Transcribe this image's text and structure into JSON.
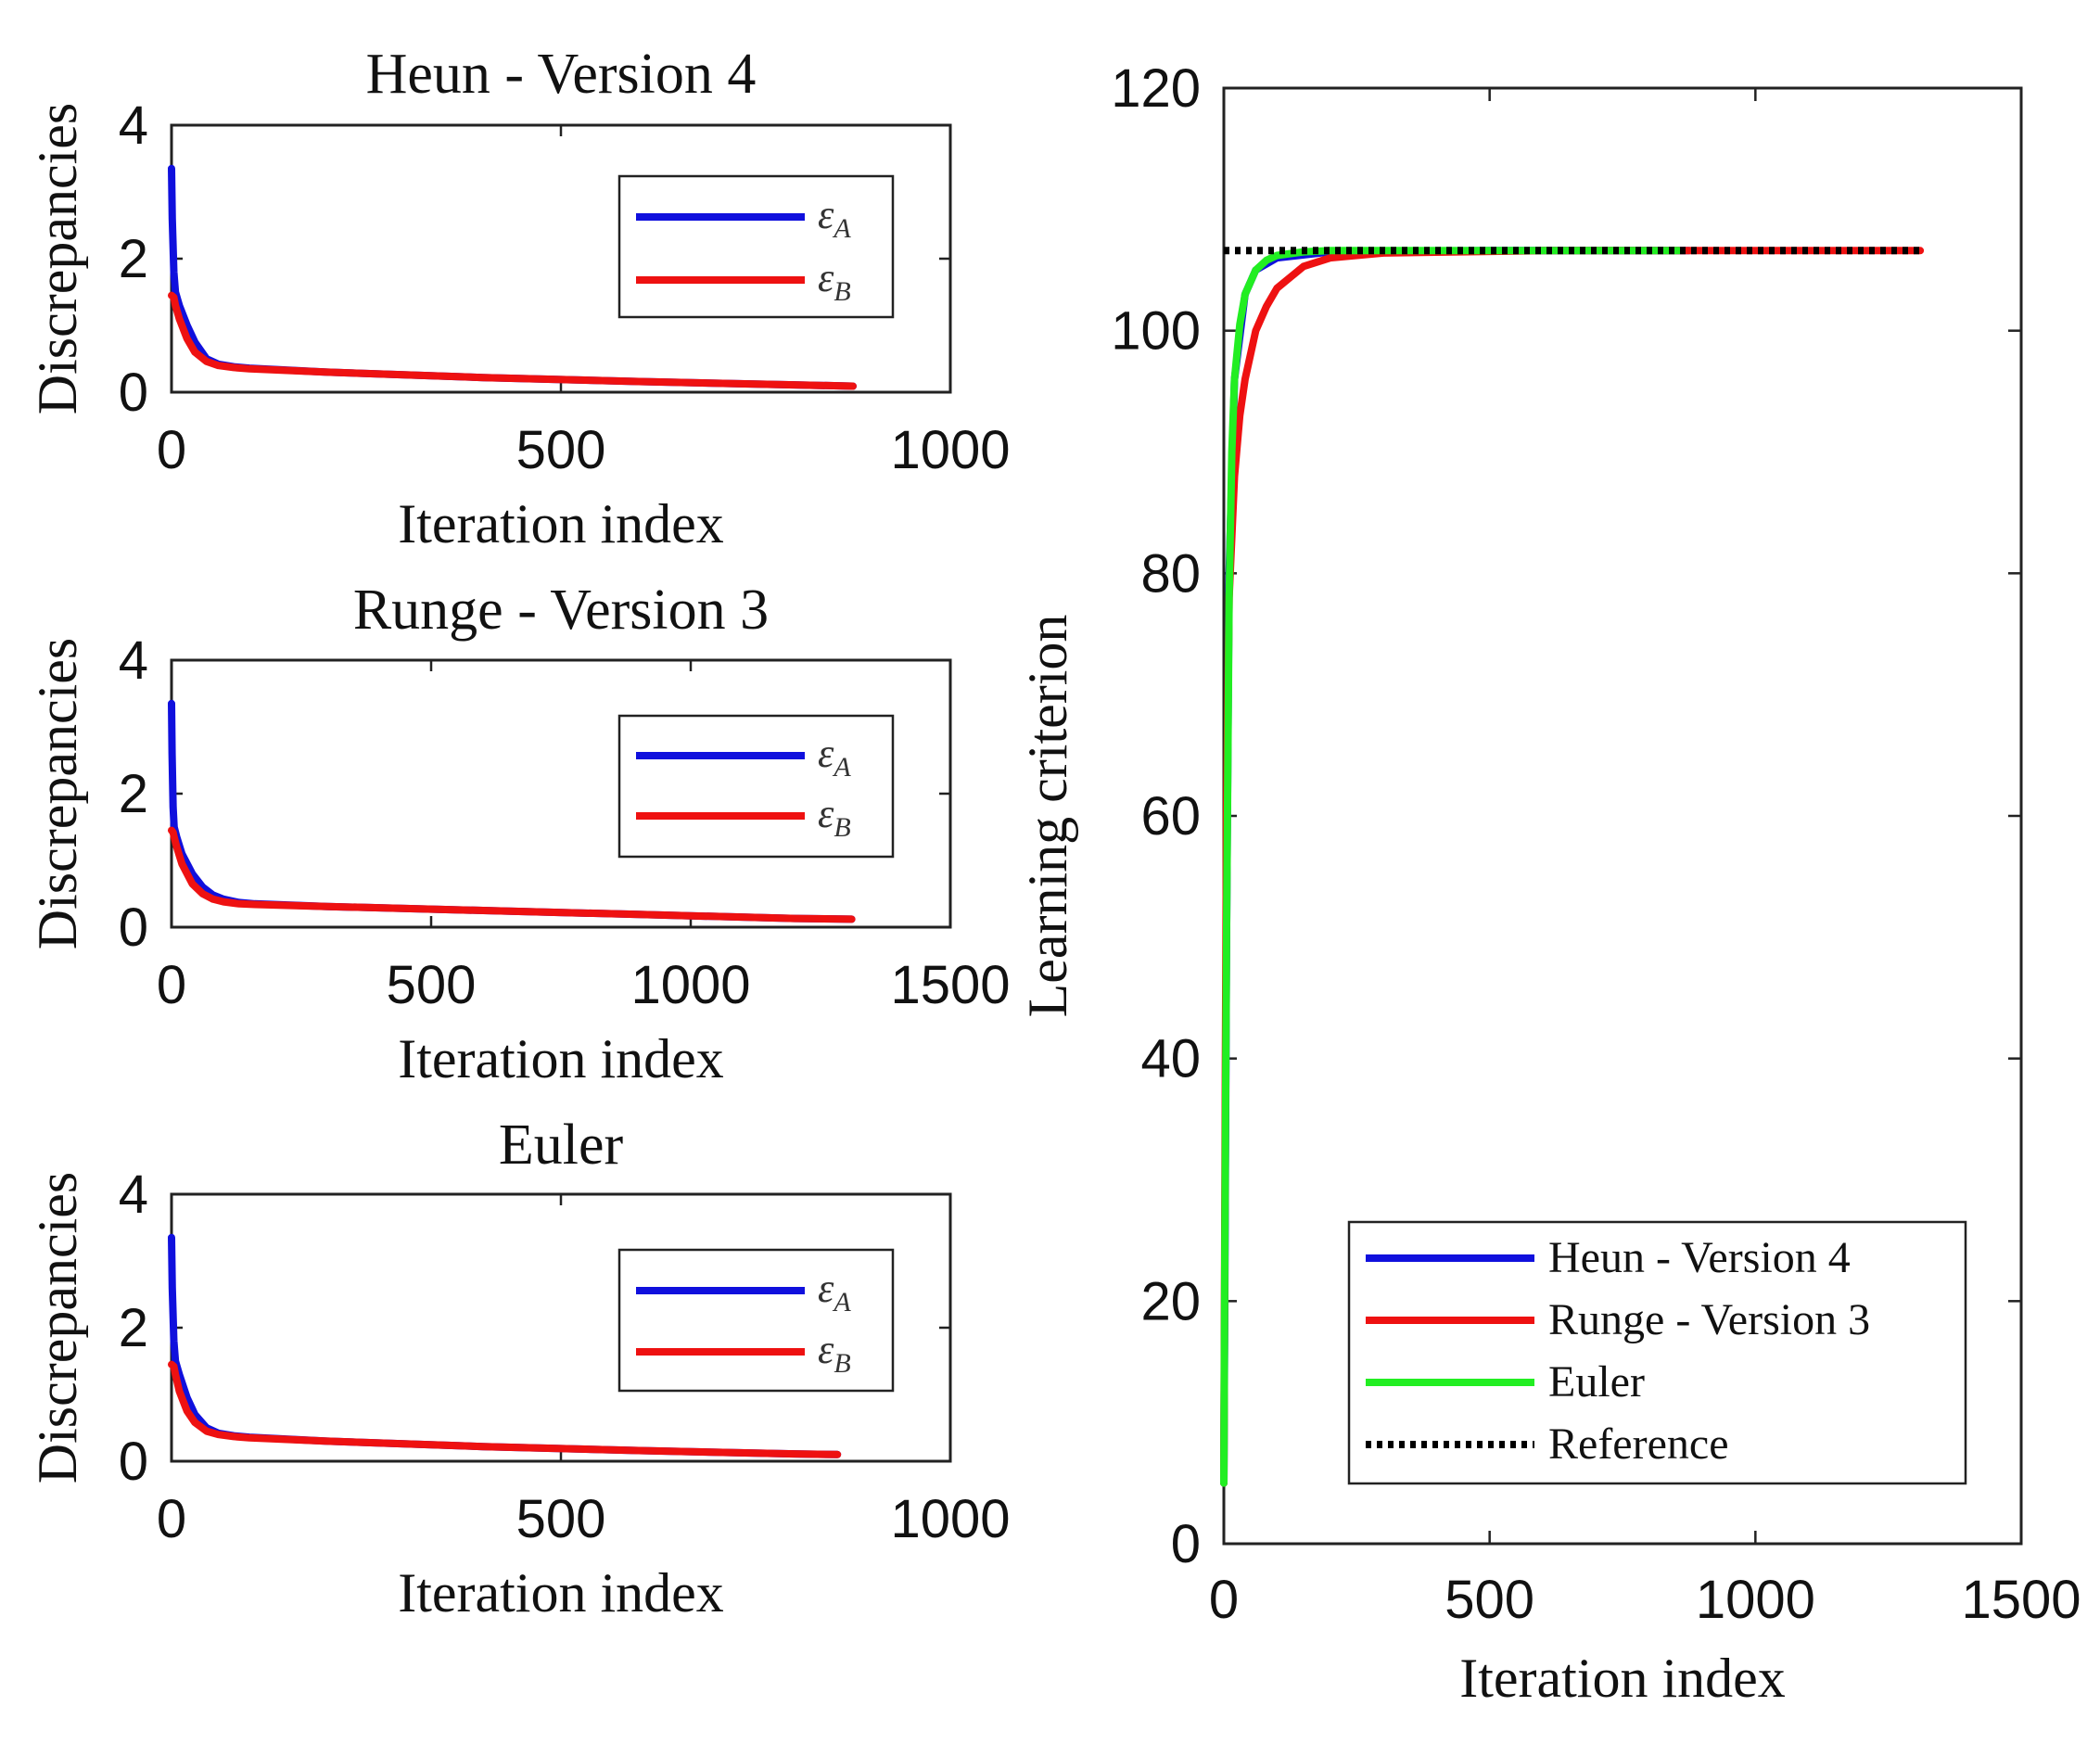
{
  "chart_data": [
    {
      "type": "line",
      "title": "Heun - Version 4",
      "xlabel": "Iteration index",
      "ylabel": "Discrepancies",
      "xlim": [
        0,
        1000
      ],
      "ylim": [
        0,
        4
      ],
      "xticks": [
        "0",
        "500",
        "1000"
      ],
      "yticks": [
        "0",
        "2",
        "4"
      ],
      "legend_position": "top-right",
      "series": [
        {
          "name": "ε",
          "sub": "A",
          "color": "#1010dd",
          "x": [
            0,
            1,
            3,
            5,
            10,
            20,
            30,
            45,
            60,
            80,
            100,
            200,
            400,
            600,
            800,
            875
          ],
          "y": [
            3.35,
            2.6,
            1.8,
            1.5,
            1.3,
            1.0,
            0.75,
            0.5,
            0.42,
            0.38,
            0.36,
            0.3,
            0.22,
            0.16,
            0.11,
            0.09
          ]
        },
        {
          "name": "ε",
          "sub": "B",
          "color": "#ee1111",
          "x": [
            0,
            3,
            5,
            10,
            20,
            30,
            45,
            60,
            80,
            100,
            200,
            400,
            600,
            800,
            875
          ],
          "y": [
            1.45,
            1.42,
            1.3,
            1.1,
            0.8,
            0.6,
            0.46,
            0.4,
            0.37,
            0.35,
            0.3,
            0.22,
            0.16,
            0.11,
            0.09
          ]
        }
      ]
    },
    {
      "type": "line",
      "title": "Runge - Version 3",
      "xlabel": "Iteration index",
      "ylabel": "Discrepancies",
      "xlim": [
        0,
        1500
      ],
      "ylim": [
        0,
        4
      ],
      "xticks": [
        "0",
        "500",
        "1000",
        "1500"
      ],
      "yticks": [
        "0",
        "2",
        "4"
      ],
      "legend_position": "top-right",
      "series": [
        {
          "name": "ε",
          "sub": "A",
          "color": "#1010dd",
          "x": [
            0,
            1,
            3,
            5,
            10,
            20,
            40,
            60,
            80,
            100,
            130,
            160,
            300,
            600,
            900,
            1200,
            1310
          ],
          "y": [
            3.35,
            2.6,
            1.8,
            1.5,
            1.35,
            1.1,
            0.8,
            0.6,
            0.48,
            0.42,
            0.37,
            0.35,
            0.31,
            0.25,
            0.19,
            0.13,
            0.12
          ]
        },
        {
          "name": "ε",
          "sub": "B",
          "color": "#ee1111",
          "x": [
            0,
            3,
            5,
            10,
            20,
            40,
            60,
            80,
            100,
            130,
            160,
            300,
            600,
            900,
            1200,
            1310
          ],
          "y": [
            1.45,
            1.42,
            1.35,
            1.2,
            0.95,
            0.65,
            0.5,
            0.42,
            0.38,
            0.35,
            0.34,
            0.31,
            0.25,
            0.19,
            0.13,
            0.12
          ]
        }
      ]
    },
    {
      "type": "line",
      "title": "Euler",
      "xlabel": "Iteration index",
      "ylabel": "Discrepancies",
      "xlim": [
        0,
        1000
      ],
      "ylim": [
        0,
        4
      ],
      "xticks": [
        "0",
        "500",
        "1000"
      ],
      "yticks": [
        "0",
        "2",
        "4"
      ],
      "legend_position": "top-right",
      "series": [
        {
          "name": "ε",
          "sub": "A",
          "color": "#1010dd",
          "x": [
            0,
            1,
            3,
            5,
            10,
            20,
            30,
            45,
            60,
            80,
            100,
            200,
            400,
            600,
            800,
            855
          ],
          "y": [
            3.35,
            2.6,
            1.8,
            1.5,
            1.3,
            0.95,
            0.7,
            0.5,
            0.42,
            0.38,
            0.36,
            0.3,
            0.22,
            0.16,
            0.11,
            0.1
          ]
        },
        {
          "name": "ε",
          "sub": "B",
          "color": "#ee1111",
          "x": [
            0,
            3,
            5,
            10,
            20,
            30,
            45,
            60,
            80,
            100,
            200,
            400,
            600,
            800,
            855
          ],
          "y": [
            1.45,
            1.42,
            1.3,
            1.05,
            0.75,
            0.58,
            0.45,
            0.4,
            0.37,
            0.35,
            0.3,
            0.22,
            0.16,
            0.11,
            0.1
          ]
        }
      ]
    },
    {
      "type": "line",
      "title": "",
      "xlabel": "Iteration index",
      "ylabel": "Learning criterion",
      "xlim": [
        0,
        1500
      ],
      "ylim": [
        0,
        120
      ],
      "xticks": [
        "0",
        "500",
        "1000",
        "1500"
      ],
      "yticks": [
        "0",
        "20",
        "40",
        "60",
        "80",
        "100",
        "120"
      ],
      "legend_position": "bottom-right",
      "series": [
        {
          "name": "Heun - Version 4",
          "color": "#1010dd",
          "dash": "",
          "x": [
            0,
            5,
            10,
            20,
            40,
            60,
            100,
            200,
            500,
            875
          ],
          "y": [
            5,
            50,
            80,
            96,
            103,
            105,
            106,
            106.5,
            106.6,
            106.6
          ]
        },
        {
          "name": "Runge - Version 3",
          "color": "#ee1111",
          "dash": "",
          "x": [
            0,
            3,
            5,
            10,
            20,
            30,
            40,
            60,
            80,
            100,
            150,
            200,
            300,
            600,
            1000,
            1310
          ],
          "y": [
            5,
            40,
            60,
            78,
            88,
            93,
            96,
            100,
            102,
            103.5,
            105.3,
            106,
            106.4,
            106.6,
            106.6,
            106.6
          ]
        },
        {
          "name": "Euler",
          "color": "#22ee22",
          "dash": "",
          "x": [
            0,
            2,
            5,
            10,
            15,
            20,
            30,
            40,
            60,
            80,
            100,
            150,
            200,
            400,
            855
          ],
          "y": [
            5,
            25,
            50,
            78,
            90,
            96,
            100.5,
            103,
            105,
            105.8,
            106.2,
            106.5,
            106.6,
            106.6,
            106.6
          ]
        },
        {
          "name": "Reference",
          "color": "#000000",
          "dash": "dot",
          "x": [
            0,
            1310
          ],
          "y": [
            106.6,
            106.6
          ]
        }
      ]
    }
  ]
}
